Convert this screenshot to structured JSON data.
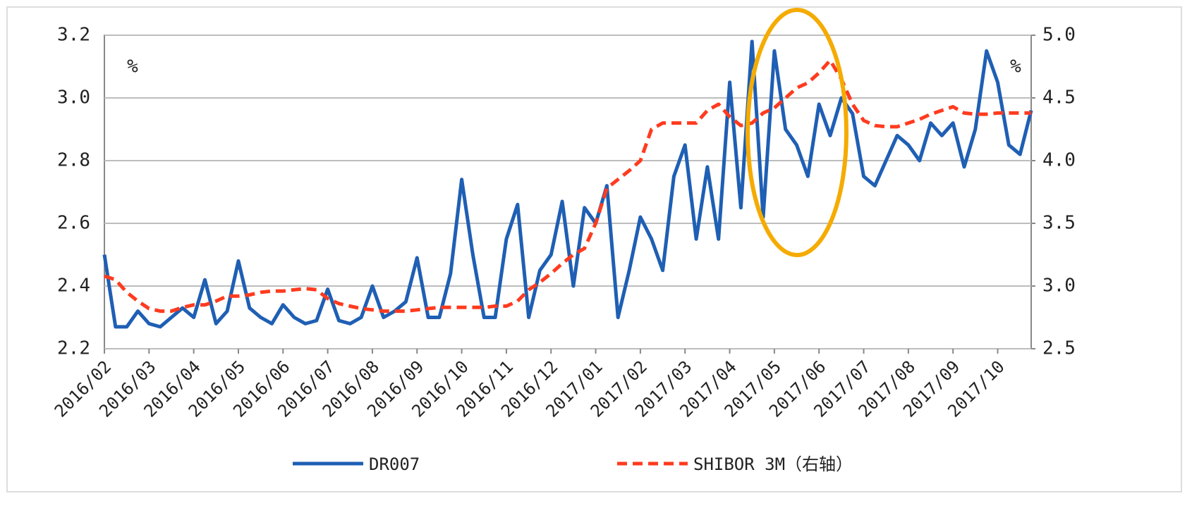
{
  "chart_data": {
    "type": "line",
    "categories": [
      "2016/02",
      null,
      null,
      null,
      "2016/03",
      null,
      null,
      null,
      "2016/04",
      null,
      null,
      null,
      "2016/05",
      null,
      null,
      null,
      "2016/06",
      null,
      null,
      null,
      "2016/07",
      null,
      null,
      null,
      "2016/08",
      null,
      null,
      null,
      "2016/09",
      null,
      null,
      null,
      "2016/10",
      null,
      null,
      null,
      "2016/11",
      null,
      null,
      null,
      "2016/12",
      null,
      null,
      null,
      "2017/01",
      null,
      null,
      null,
      "2017/02",
      null,
      null,
      null,
      "2017/03",
      null,
      null,
      null,
      "2017/04",
      null,
      null,
      null,
      "2017/05",
      null,
      null,
      null,
      "2017/06",
      null,
      null,
      null,
      "2017/07",
      null,
      null,
      null,
      "2017/08",
      null,
      null,
      null,
      "2017/09",
      null,
      null,
      null,
      "2017/10",
      null,
      null,
      null
    ],
    "series": [
      {
        "name": "DR007",
        "color": "#1f5fb4",
        "axis": "y",
        "dash": false,
        "values": [
          2.5,
          2.27,
          2.27,
          2.32,
          2.28,
          2.27,
          2.3,
          2.33,
          2.3,
          2.42,
          2.28,
          2.32,
          2.48,
          2.33,
          2.3,
          2.28,
          2.34,
          2.3,
          2.28,
          2.29,
          2.39,
          2.29,
          2.28,
          2.3,
          2.4,
          2.3,
          2.32,
          2.35,
          2.49,
          2.3,
          2.3,
          2.44,
          2.74,
          2.5,
          2.3,
          2.3,
          2.55,
          2.66,
          2.3,
          2.45,
          2.5,
          2.67,
          2.4,
          2.65,
          2.6,
          2.72,
          2.3,
          2.45,
          2.62,
          2.55,
          2.45,
          2.75,
          2.85,
          2.55,
          2.78,
          2.55,
          3.05,
          2.65,
          3.18,
          2.62,
          3.15,
          2.9,
          2.85,
          2.75,
          2.98,
          2.88,
          3.0,
          2.95,
          2.75,
          2.72,
          2.8,
          2.88,
          2.85,
          2.8,
          2.92,
          2.88,
          2.92,
          2.78,
          2.9,
          3.15,
          3.05,
          2.85,
          2.82,
          2.96
        ]
      },
      {
        "name": "SHIBOR 3M（右轴）",
        "color": "#ff3b1f",
        "axis": "y2",
        "dash": true,
        "values": [
          3.08,
          3.05,
          2.95,
          2.88,
          2.82,
          2.8,
          2.8,
          2.83,
          2.85,
          2.85,
          2.88,
          2.92,
          2.92,
          2.93,
          2.95,
          2.96,
          2.96,
          2.97,
          2.98,
          2.97,
          2.9,
          2.86,
          2.84,
          2.82,
          2.81,
          2.8,
          2.8,
          2.8,
          2.81,
          2.82,
          2.83,
          2.83,
          2.83,
          2.83,
          2.83,
          2.84,
          2.84,
          2.88,
          2.97,
          3.03,
          3.1,
          3.18,
          3.25,
          3.3,
          3.5,
          3.78,
          3.85,
          3.92,
          4.0,
          4.25,
          4.3,
          4.3,
          4.3,
          4.3,
          4.4,
          4.45,
          4.35,
          4.28,
          4.3,
          4.38,
          4.42,
          4.5,
          4.58,
          4.62,
          4.7,
          4.8,
          4.65,
          4.45,
          4.32,
          4.28,
          4.27,
          4.27,
          4.3,
          4.33,
          4.37,
          4.4,
          4.43,
          4.38,
          4.37,
          4.37,
          4.38,
          4.38,
          4.38,
          4.38
        ]
      }
    ],
    "ylim": [
      2.2,
      3.2
    ],
    "yticks": [
      2.2,
      2.4,
      2.6,
      2.8,
      {
        "value": 3,
        "label": "3.0"
      },
      3.2
    ],
    "y2lim": [
      2.5,
      5
    ],
    "y2ticks": [
      2.5,
      {
        "value": 3,
        "label": "3.0"
      },
      3.5,
      {
        "value": 4,
        "label": "4.0"
      },
      4.5,
      {
        "value": 5,
        "label": "5.0"
      }
    ],
    "y_unit": "%",
    "y2_unit": "%",
    "grid": true,
    "legend": "bottom"
  }
}
